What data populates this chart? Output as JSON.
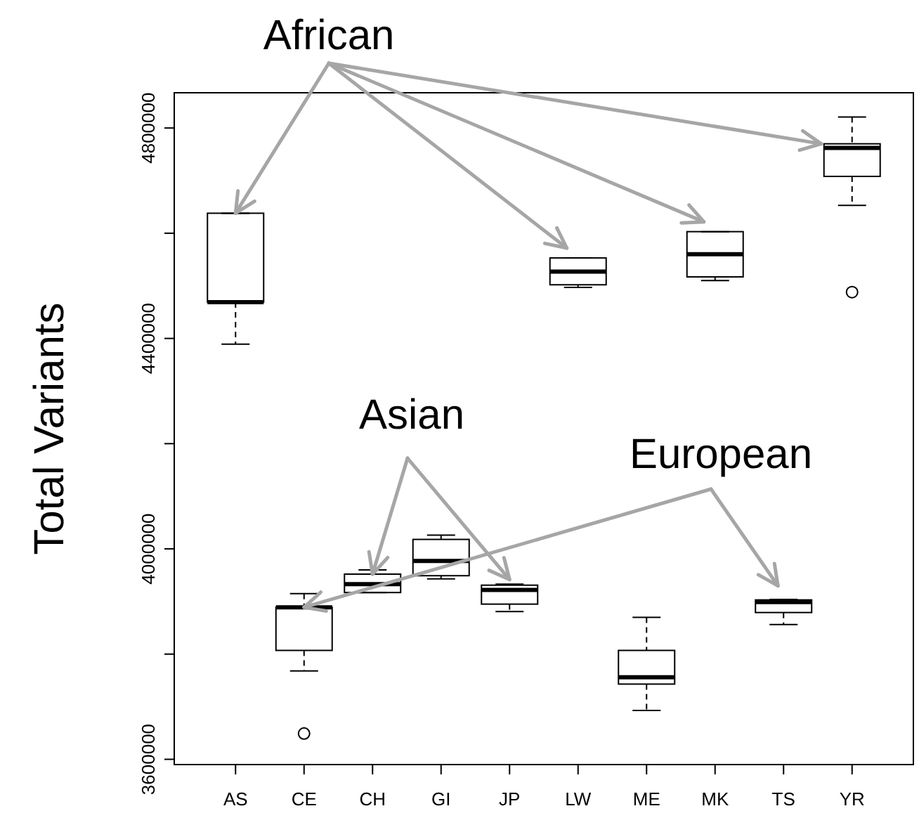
{
  "chart_data": {
    "type": "box",
    "ylabel": "Total Variants",
    "categories": [
      "AS",
      "CE",
      "CH",
      "GI",
      "JP",
      "LW",
      "ME",
      "MK",
      "TS",
      "YR"
    ],
    "boxes": [
      {
        "low": 4389000,
        "q1": 4469000,
        "median": 4469000,
        "q3": 4638000,
        "high": 4638000
      },
      {
        "low": 3768000,
        "q1": 3807000,
        "median": 3889000,
        "q3": 3889000,
        "high": 3915000,
        "outliers": [
          3649000
        ]
      },
      {
        "low": 3917000,
        "q1": 3917000,
        "median": 3933000,
        "q3": 3952000,
        "high": 3960000
      },
      {
        "low": 3943000,
        "q1": 3949000,
        "median": 3977000,
        "q3": 4018000,
        "high": 4026000
      },
      {
        "low": 3881000,
        "q1": 3895000,
        "median": 3922000,
        "q3": 3931000,
        "high": 3933000
      },
      {
        "low": 4497000,
        "q1": 4502000,
        "median": 4527000,
        "q3": 4553000,
        "high": 4553000
      },
      {
        "low": 3693000,
        "q1": 3743000,
        "median": 3756000,
        "q3": 3807000,
        "high": 3870000
      },
      {
        "low": 4510000,
        "q1": 4517000,
        "median": 4560000,
        "q3": 4603000,
        "high": 4603000
      },
      {
        "low": 3856000,
        "q1": 3879000,
        "median": 3899000,
        "q3": 3903000,
        "high": 3904000
      },
      {
        "low": 4653000,
        "q1": 4708000,
        "median": 4762000,
        "q3": 4770000,
        "high": 4821000,
        "outliers": [
          4488000
        ]
      }
    ],
    "ylim": [
      3590000,
      4867000
    ],
    "yticks": [
      3600000,
      {
        "value": 3800000,
        "label": null
      },
      4000000,
      {
        "value": 4200000,
        "label": null
      },
      4400000,
      {
        "value": 4600000,
        "label": null
      },
      4800000
    ],
    "annotations": [
      {
        "text": "African",
        "x": "AS",
        "y": 4638000
      },
      {
        "text": "Asian",
        "x": "CH",
        "y": 3952000
      },
      {
        "text": "European",
        "x": "CE",
        "y": 3889000
      }
    ]
  }
}
